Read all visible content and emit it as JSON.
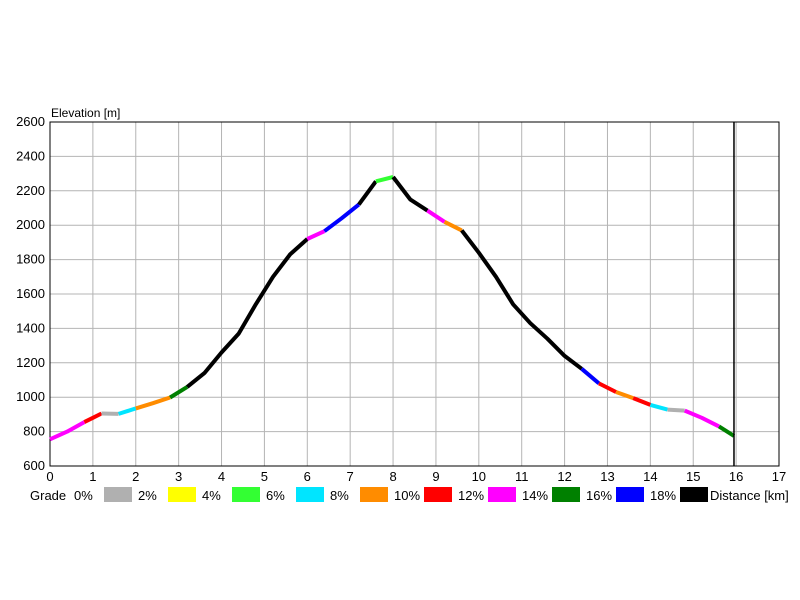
{
  "chart_data": {
    "type": "line",
    "ylabel": "Elevation [m]",
    "xlabel": "Distance [km]",
    "xlim": [
      0,
      17
    ],
    "ylim": [
      600,
      2600
    ],
    "x_ticks": [
      0,
      1,
      2,
      3,
      4,
      5,
      6,
      7,
      8,
      9,
      10,
      11,
      12,
      13,
      14,
      15,
      16,
      17
    ],
    "y_ticks": [
      600,
      800,
      1000,
      1200,
      1400,
      1600,
      1800,
      2000,
      2200,
      2400,
      2600
    ],
    "grid": true,
    "marker_x": 15.95,
    "legend": {
      "title": "Grade",
      "placement": "bottom",
      "entries": [
        {
          "label": "0%",
          "color": "#b0b0b0"
        },
        {
          "label": "2%",
          "color": "#ffff00"
        },
        {
          "label": "4%",
          "color": "#33ff33"
        },
        {
          "label": "6%",
          "color": "#00e5ff"
        },
        {
          "label": "8%",
          "color": "#ff8c00"
        },
        {
          "label": "10%",
          "color": "#ff0000"
        },
        {
          "label": "12%",
          "color": "#ff00ff"
        },
        {
          "label": "14%",
          "color": "#008000"
        },
        {
          "label": "16%",
          "color": "#0000ff"
        },
        {
          "label": "18%",
          "color": "#000000"
        }
      ]
    },
    "segments": [
      {
        "x": [
          0,
          0.4,
          0.8
        ],
        "y": [
          755,
          800,
          855
        ],
        "color": "#ff00ff"
      },
      {
        "x": [
          0.8,
          1.0,
          1.2
        ],
        "y": [
          855,
          880,
          905
        ],
        "color": "#ff0000"
      },
      {
        "x": [
          1.2,
          1.6
        ],
        "y": [
          905,
          903
        ],
        "color": "#b0b0b0"
      },
      {
        "x": [
          1.6,
          2.0
        ],
        "y": [
          903,
          935
        ],
        "color": "#00e5ff"
      },
      {
        "x": [
          2.0,
          2.4,
          2.8
        ],
        "y": [
          935,
          965,
          998
        ],
        "color": "#ff8c00"
      },
      {
        "x": [
          2.8,
          3.2
        ],
        "y": [
          998,
          1060
        ],
        "color": "#008000"
      },
      {
        "x": [
          3.2,
          3.6,
          4.0,
          4.4,
          4.8,
          5.2,
          5.6,
          6.0
        ],
        "y": [
          1060,
          1140,
          1260,
          1370,
          1540,
          1700,
          1830,
          1920
        ],
        "color": "#000000"
      },
      {
        "x": [
          6.0,
          6.4
        ],
        "y": [
          1920,
          1965
        ],
        "color": "#ff00ff"
      },
      {
        "x": [
          6.4,
          6.8,
          7.2
        ],
        "y": [
          1965,
          2040,
          2120
        ],
        "color": "#0000ff"
      },
      {
        "x": [
          7.2,
          7.6
        ],
        "y": [
          2120,
          2255
        ],
        "color": "#000000"
      },
      {
        "x": [
          7.6,
          8.0
        ],
        "y": [
          2255,
          2280
        ],
        "color": "#33ff33"
      },
      {
        "x": [
          8.0,
          8.4,
          8.8
        ],
        "y": [
          2280,
          2150,
          2085
        ],
        "color": "#000000"
      },
      {
        "x": [
          8.8,
          9.2
        ],
        "y": [
          2085,
          2020
        ],
        "color": "#ff00ff"
      },
      {
        "x": [
          9.2,
          9.6
        ],
        "y": [
          2020,
          1970
        ],
        "color": "#ff8c00"
      },
      {
        "x": [
          9.6,
          10.0,
          10.4,
          10.8,
          11.2,
          11.6,
          12.0,
          12.4
        ],
        "y": [
          1970,
          1840,
          1700,
          1540,
          1430,
          1340,
          1240,
          1165
        ],
        "color": "#000000"
      },
      {
        "x": [
          12.4,
          12.8
        ],
        "y": [
          1165,
          1080
        ],
        "color": "#0000ff"
      },
      {
        "x": [
          12.8,
          13.2
        ],
        "y": [
          1080,
          1030
        ],
        "color": "#ff0000"
      },
      {
        "x": [
          13.2,
          13.6
        ],
        "y": [
          1030,
          995
        ],
        "color": "#ff8c00"
      },
      {
        "x": [
          13.6,
          14.0
        ],
        "y": [
          995,
          955
        ],
        "color": "#ff0000"
      },
      {
        "x": [
          14.0,
          14.4
        ],
        "y": [
          955,
          928
        ],
        "color": "#00e5ff"
      },
      {
        "x": [
          14.4,
          14.8
        ],
        "y": [
          928,
          922
        ],
        "color": "#b0b0b0"
      },
      {
        "x": [
          14.8,
          15.2,
          15.6
        ],
        "y": [
          922,
          880,
          830
        ],
        "color": "#ff00ff"
      },
      {
        "x": [
          15.6,
          15.95
        ],
        "y": [
          830,
          775
        ],
        "color": "#008000"
      }
    ]
  }
}
